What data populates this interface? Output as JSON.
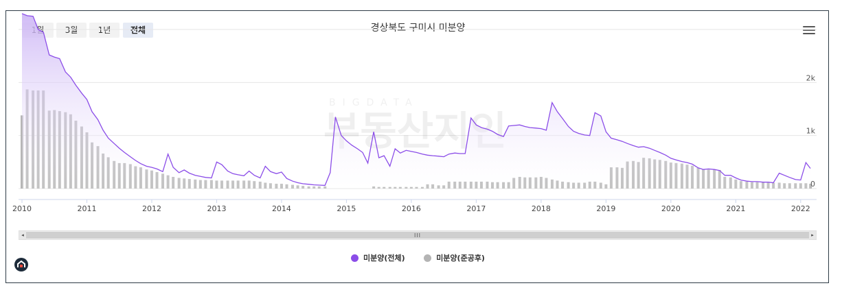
{
  "range_buttons": [
    {
      "label": "1월",
      "active": false
    },
    {
      "label": "3월",
      "active": false
    },
    {
      "label": "1년",
      "active": false
    },
    {
      "label": "전체",
      "active": true
    }
  ],
  "watermark": {
    "small": "BIGDATA",
    "large": "부동산지인"
  },
  "scrollbar": {
    "grip": "III",
    "left_arrow": "◂",
    "right_arrow": "▸"
  },
  "colors": {
    "line": "#8b4de8",
    "bars": "#b4b4b4",
    "area_top": "#c9b0f5",
    "area_bottom": "#ffffff"
  },
  "chart_data": {
    "type": "line",
    "title": "경상북도 구미시 미분양",
    "x_ticks": [
      "2010",
      "2011",
      "2012",
      "2013",
      "2014",
      "2015",
      "2016",
      "2017",
      "2018",
      "2019",
      "2020",
      "2021",
      "2022"
    ],
    "x_range": [
      2010.0,
      2022.15
    ],
    "y_ticks": [
      {
        "value": 0,
        "label": "0"
      },
      {
        "value": 1000,
        "label": "1k"
      },
      {
        "value": 2000,
        "label": "2k"
      }
    ],
    "ylim": [
      0,
      3000
    ],
    "grid": true,
    "legend_position": "bottom-center",
    "series": [
      {
        "name": "미분양(전체)",
        "type": "area-line",
        "points": [
          [
            2010.0,
            3300
          ],
          [
            2010.08,
            3260
          ],
          [
            2010.17,
            3250
          ],
          [
            2010.25,
            3000
          ],
          [
            2010.33,
            2950
          ],
          [
            2010.42,
            2520
          ],
          [
            2010.5,
            2480
          ],
          [
            2010.58,
            2450
          ],
          [
            2010.67,
            2200
          ],
          [
            2010.75,
            2100
          ],
          [
            2010.83,
            1950
          ],
          [
            2010.92,
            1800
          ],
          [
            2011.0,
            1680
          ],
          [
            2011.08,
            1450
          ],
          [
            2011.17,
            1300
          ],
          [
            2011.25,
            1100
          ],
          [
            2011.33,
            950
          ],
          [
            2011.42,
            850
          ],
          [
            2011.5,
            760
          ],
          [
            2011.58,
            680
          ],
          [
            2011.67,
            600
          ],
          [
            2011.75,
            530
          ],
          [
            2011.83,
            470
          ],
          [
            2011.92,
            420
          ],
          [
            2012.0,
            400
          ],
          [
            2012.08,
            370
          ],
          [
            2012.17,
            320
          ],
          [
            2012.25,
            650
          ],
          [
            2012.33,
            400
          ],
          [
            2012.42,
            300
          ],
          [
            2012.5,
            350
          ],
          [
            2012.58,
            290
          ],
          [
            2012.67,
            250
          ],
          [
            2012.75,
            230
          ],
          [
            2012.83,
            210
          ],
          [
            2012.92,
            200
          ],
          [
            2013.0,
            500
          ],
          [
            2013.08,
            450
          ],
          [
            2013.17,
            330
          ],
          [
            2013.25,
            280
          ],
          [
            2013.33,
            260
          ],
          [
            2013.42,
            240
          ],
          [
            2013.5,
            330
          ],
          [
            2013.58,
            250
          ],
          [
            2013.67,
            200
          ],
          [
            2013.75,
            420
          ],
          [
            2013.83,
            320
          ],
          [
            2013.92,
            280
          ],
          [
            2014.0,
            310
          ],
          [
            2014.08,
            190
          ],
          [
            2014.17,
            140
          ],
          [
            2014.25,
            110
          ],
          [
            2014.33,
            90
          ],
          [
            2014.42,
            80
          ],
          [
            2014.5,
            70
          ],
          [
            2014.58,
            65
          ],
          [
            2014.67,
            60
          ],
          [
            2014.75,
            300
          ],
          [
            2014.83,
            1350
          ],
          [
            2014.92,
            1000
          ],
          [
            2015.0,
            900
          ],
          [
            2015.08,
            820
          ],
          [
            2015.17,
            750
          ],
          [
            2015.25,
            680
          ],
          [
            2015.33,
            480
          ],
          [
            2015.42,
            1070
          ],
          [
            2015.5,
            580
          ],
          [
            2015.58,
            620
          ],
          [
            2015.67,
            420
          ],
          [
            2015.75,
            750
          ],
          [
            2015.83,
            670
          ],
          [
            2015.92,
            720
          ],
          [
            2016.0,
            700
          ],
          [
            2016.08,
            680
          ],
          [
            2016.17,
            650
          ],
          [
            2016.25,
            630
          ],
          [
            2016.33,
            620
          ],
          [
            2016.42,
            610
          ],
          [
            2016.5,
            600
          ],
          [
            2016.58,
            650
          ],
          [
            2016.67,
            670
          ],
          [
            2016.75,
            660
          ],
          [
            2016.83,
            660
          ],
          [
            2016.92,
            1330
          ],
          [
            2017.0,
            1200
          ],
          [
            2017.08,
            1150
          ],
          [
            2017.17,
            1120
          ],
          [
            2017.25,
            1080
          ],
          [
            2017.33,
            1020
          ],
          [
            2017.42,
            980
          ],
          [
            2017.5,
            1180
          ],
          [
            2017.58,
            1190
          ],
          [
            2017.67,
            1200
          ],
          [
            2017.75,
            1170
          ],
          [
            2017.83,
            1150
          ],
          [
            2017.92,
            1140
          ],
          [
            2018.0,
            1130
          ],
          [
            2018.08,
            1100
          ],
          [
            2018.17,
            1620
          ],
          [
            2018.25,
            1450
          ],
          [
            2018.33,
            1320
          ],
          [
            2018.42,
            1170
          ],
          [
            2018.5,
            1080
          ],
          [
            2018.58,
            1040
          ],
          [
            2018.67,
            1010
          ],
          [
            2018.75,
            1000
          ],
          [
            2018.83,
            1430
          ],
          [
            2018.92,
            1370
          ],
          [
            2019.0,
            1070
          ],
          [
            2019.08,
            950
          ],
          [
            2019.17,
            920
          ],
          [
            2019.25,
            890
          ],
          [
            2019.33,
            850
          ],
          [
            2019.42,
            810
          ],
          [
            2019.5,
            780
          ],
          [
            2019.58,
            790
          ],
          [
            2019.67,
            760
          ],
          [
            2019.75,
            720
          ],
          [
            2019.83,
            680
          ],
          [
            2019.92,
            630
          ],
          [
            2020.0,
            570
          ],
          [
            2020.08,
            540
          ],
          [
            2020.17,
            510
          ],
          [
            2020.25,
            490
          ],
          [
            2020.33,
            460
          ],
          [
            2020.42,
            390
          ],
          [
            2020.5,
            360
          ],
          [
            2020.58,
            370
          ],
          [
            2020.67,
            360
          ],
          [
            2020.75,
            340
          ],
          [
            2020.83,
            250
          ],
          [
            2020.92,
            250
          ],
          [
            2021.0,
            200
          ],
          [
            2021.08,
            160
          ],
          [
            2021.17,
            140
          ],
          [
            2021.25,
            130
          ],
          [
            2021.33,
            130
          ],
          [
            2021.42,
            120
          ],
          [
            2021.5,
            120
          ],
          [
            2021.58,
            110
          ],
          [
            2021.67,
            290
          ],
          [
            2021.75,
            250
          ],
          [
            2021.83,
            210
          ],
          [
            2021.92,
            170
          ],
          [
            2022.0,
            160
          ],
          [
            2022.08,
            490
          ],
          [
            2022.15,
            380
          ]
        ]
      },
      {
        "name": "미분양(준공후)",
        "type": "bar",
        "points": [
          [
            2010.0,
            1380
          ],
          [
            2010.08,
            1870
          ],
          [
            2010.17,
            1850
          ],
          [
            2010.25,
            1850
          ],
          [
            2010.33,
            1850
          ],
          [
            2010.42,
            1470
          ],
          [
            2010.5,
            1480
          ],
          [
            2010.58,
            1460
          ],
          [
            2010.67,
            1440
          ],
          [
            2010.75,
            1400
          ],
          [
            2010.83,
            1280
          ],
          [
            2010.92,
            1170
          ],
          [
            2011.0,
            1060
          ],
          [
            2011.08,
            870
          ],
          [
            2011.17,
            800
          ],
          [
            2011.25,
            660
          ],
          [
            2011.33,
            590
          ],
          [
            2011.42,
            520
          ],
          [
            2011.5,
            480
          ],
          [
            2011.58,
            480
          ],
          [
            2011.67,
            460
          ],
          [
            2011.75,
            420
          ],
          [
            2011.83,
            400
          ],
          [
            2011.92,
            360
          ],
          [
            2012.0,
            340
          ],
          [
            2012.08,
            310
          ],
          [
            2012.17,
            280
          ],
          [
            2012.25,
            250
          ],
          [
            2012.33,
            220
          ],
          [
            2012.42,
            200
          ],
          [
            2012.5,
            190
          ],
          [
            2012.58,
            180
          ],
          [
            2012.67,
            170
          ],
          [
            2012.75,
            160
          ],
          [
            2012.83,
            160
          ],
          [
            2012.92,
            160
          ],
          [
            2013.0,
            150
          ],
          [
            2013.08,
            150
          ],
          [
            2013.17,
            150
          ],
          [
            2013.25,
            150
          ],
          [
            2013.33,
            150
          ],
          [
            2013.42,
            150
          ],
          [
            2013.5,
            150
          ],
          [
            2013.58,
            140
          ],
          [
            2013.67,
            130
          ],
          [
            2013.75,
            110
          ],
          [
            2013.83,
            100
          ],
          [
            2013.92,
            90
          ],
          [
            2014.0,
            90
          ],
          [
            2014.08,
            80
          ],
          [
            2014.17,
            70
          ],
          [
            2014.25,
            60
          ],
          [
            2014.33,
            50
          ],
          [
            2014.42,
            40
          ],
          [
            2014.5,
            40
          ],
          [
            2014.58,
            40
          ],
          [
            2014.67,
            40
          ],
          [
            2015.42,
            40
          ],
          [
            2015.5,
            30
          ],
          [
            2015.58,
            30
          ],
          [
            2015.67,
            30
          ],
          [
            2015.75,
            30
          ],
          [
            2015.83,
            30
          ],
          [
            2015.92,
            30
          ],
          [
            2016.0,
            30
          ],
          [
            2016.08,
            30
          ],
          [
            2016.17,
            30
          ],
          [
            2016.25,
            80
          ],
          [
            2016.33,
            80
          ],
          [
            2016.42,
            60
          ],
          [
            2016.5,
            60
          ],
          [
            2016.58,
            130
          ],
          [
            2016.67,
            130
          ],
          [
            2016.75,
            130
          ],
          [
            2016.83,
            130
          ],
          [
            2016.92,
            130
          ],
          [
            2017.0,
            130
          ],
          [
            2017.08,
            130
          ],
          [
            2017.17,
            130
          ],
          [
            2017.25,
            120
          ],
          [
            2017.33,
            120
          ],
          [
            2017.42,
            120
          ],
          [
            2017.5,
            120
          ],
          [
            2017.58,
            200
          ],
          [
            2017.67,
            220
          ],
          [
            2017.75,
            210
          ],
          [
            2017.83,
            210
          ],
          [
            2017.92,
            210
          ],
          [
            2018.0,
            220
          ],
          [
            2018.08,
            200
          ],
          [
            2018.17,
            170
          ],
          [
            2018.25,
            150
          ],
          [
            2018.33,
            130
          ],
          [
            2018.42,
            120
          ],
          [
            2018.5,
            110
          ],
          [
            2018.58,
            110
          ],
          [
            2018.67,
            110
          ],
          [
            2018.75,
            130
          ],
          [
            2018.83,
            130
          ],
          [
            2018.92,
            110
          ],
          [
            2019.0,
            80
          ],
          [
            2019.08,
            400
          ],
          [
            2019.17,
            400
          ],
          [
            2019.25,
            390
          ],
          [
            2019.33,
            510
          ],
          [
            2019.42,
            520
          ],
          [
            2019.5,
            500
          ],
          [
            2019.58,
            580
          ],
          [
            2019.67,
            570
          ],
          [
            2019.75,
            550
          ],
          [
            2019.83,
            540
          ],
          [
            2019.92,
            520
          ],
          [
            2020.0,
            490
          ],
          [
            2020.08,
            480
          ],
          [
            2020.17,
            470
          ],
          [
            2020.25,
            450
          ],
          [
            2020.33,
            430
          ],
          [
            2020.42,
            390
          ],
          [
            2020.5,
            360
          ],
          [
            2020.58,
            360
          ],
          [
            2020.67,
            360
          ],
          [
            2020.75,
            350
          ],
          [
            2020.83,
            220
          ],
          [
            2020.92,
            210
          ],
          [
            2021.0,
            170
          ],
          [
            2021.08,
            140
          ],
          [
            2021.17,
            130
          ],
          [
            2021.25,
            120
          ],
          [
            2021.33,
            120
          ],
          [
            2021.42,
            120
          ],
          [
            2021.5,
            110
          ],
          [
            2021.58,
            110
          ],
          [
            2021.67,
            110
          ],
          [
            2021.75,
            100
          ],
          [
            2021.83,
            100
          ],
          [
            2021.92,
            100
          ],
          [
            2022.0,
            100
          ],
          [
            2022.08,
            100
          ],
          [
            2022.15,
            90
          ]
        ]
      }
    ]
  }
}
